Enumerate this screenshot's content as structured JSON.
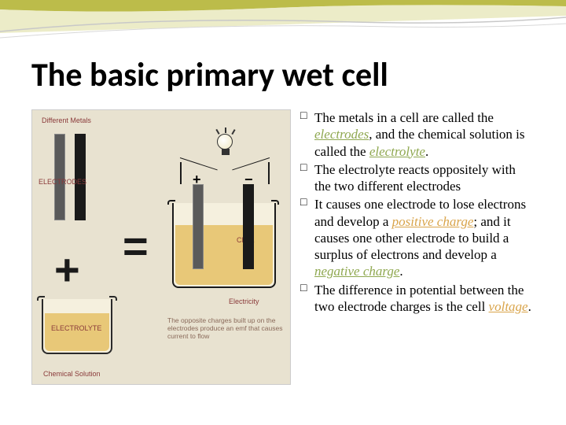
{
  "title": "The basic primary wet cell",
  "bullets": [
    {
      "pre": "The metals in a cell are called the ",
      "term1": "electrodes",
      "term1_class": "term-green",
      "mid": ", and the chemical solution is called the ",
      "term2": "electrolyte",
      "term2_class": "term-green",
      "post": "."
    },
    {
      "pre": "The electrolyte reacts oppositely with the two different electrodes",
      "term1": "",
      "term1_class": "",
      "mid": "",
      "term2": "",
      "term2_class": "",
      "post": ""
    },
    {
      "pre": "It causes one electrode to lose electrons and develop a ",
      "term1": "positive charge",
      "term1_class": "term-orange",
      "mid": "; and it causes one other electrode to build a surplus of electrons and develop a ",
      "term2": "negative charge",
      "term2_class": "term-green",
      "post": "."
    },
    {
      "pre": "The difference in potential between the two electrode charges is the cell ",
      "term1": "voltage",
      "term1_class": "term-orange",
      "mid": "",
      "term2": "",
      "term2_class": "",
      "post": "."
    }
  ],
  "diagram": {
    "label_metals": "Different Metals",
    "label_electrodes": "ELECTRODES",
    "label_electrolyte": "ELECTROLYTE",
    "label_chemical": "Chemical Solution",
    "label_cell": "CELL",
    "label_electricity": "Electricity",
    "caption": "The opposite charges built up on the electrodes produce an emf that causes current to flow",
    "colors": {
      "bg": "#e8e2d0",
      "electrode_light": "#5a5a5a",
      "electrode_dark": "#1a1a1a",
      "liquid": "#e8c878",
      "label_color": "#8a3a3a"
    }
  },
  "accent": {
    "color1": "#b8b840",
    "color2": "#e0e0a0",
    "curve_color": "#d0d0d0"
  }
}
